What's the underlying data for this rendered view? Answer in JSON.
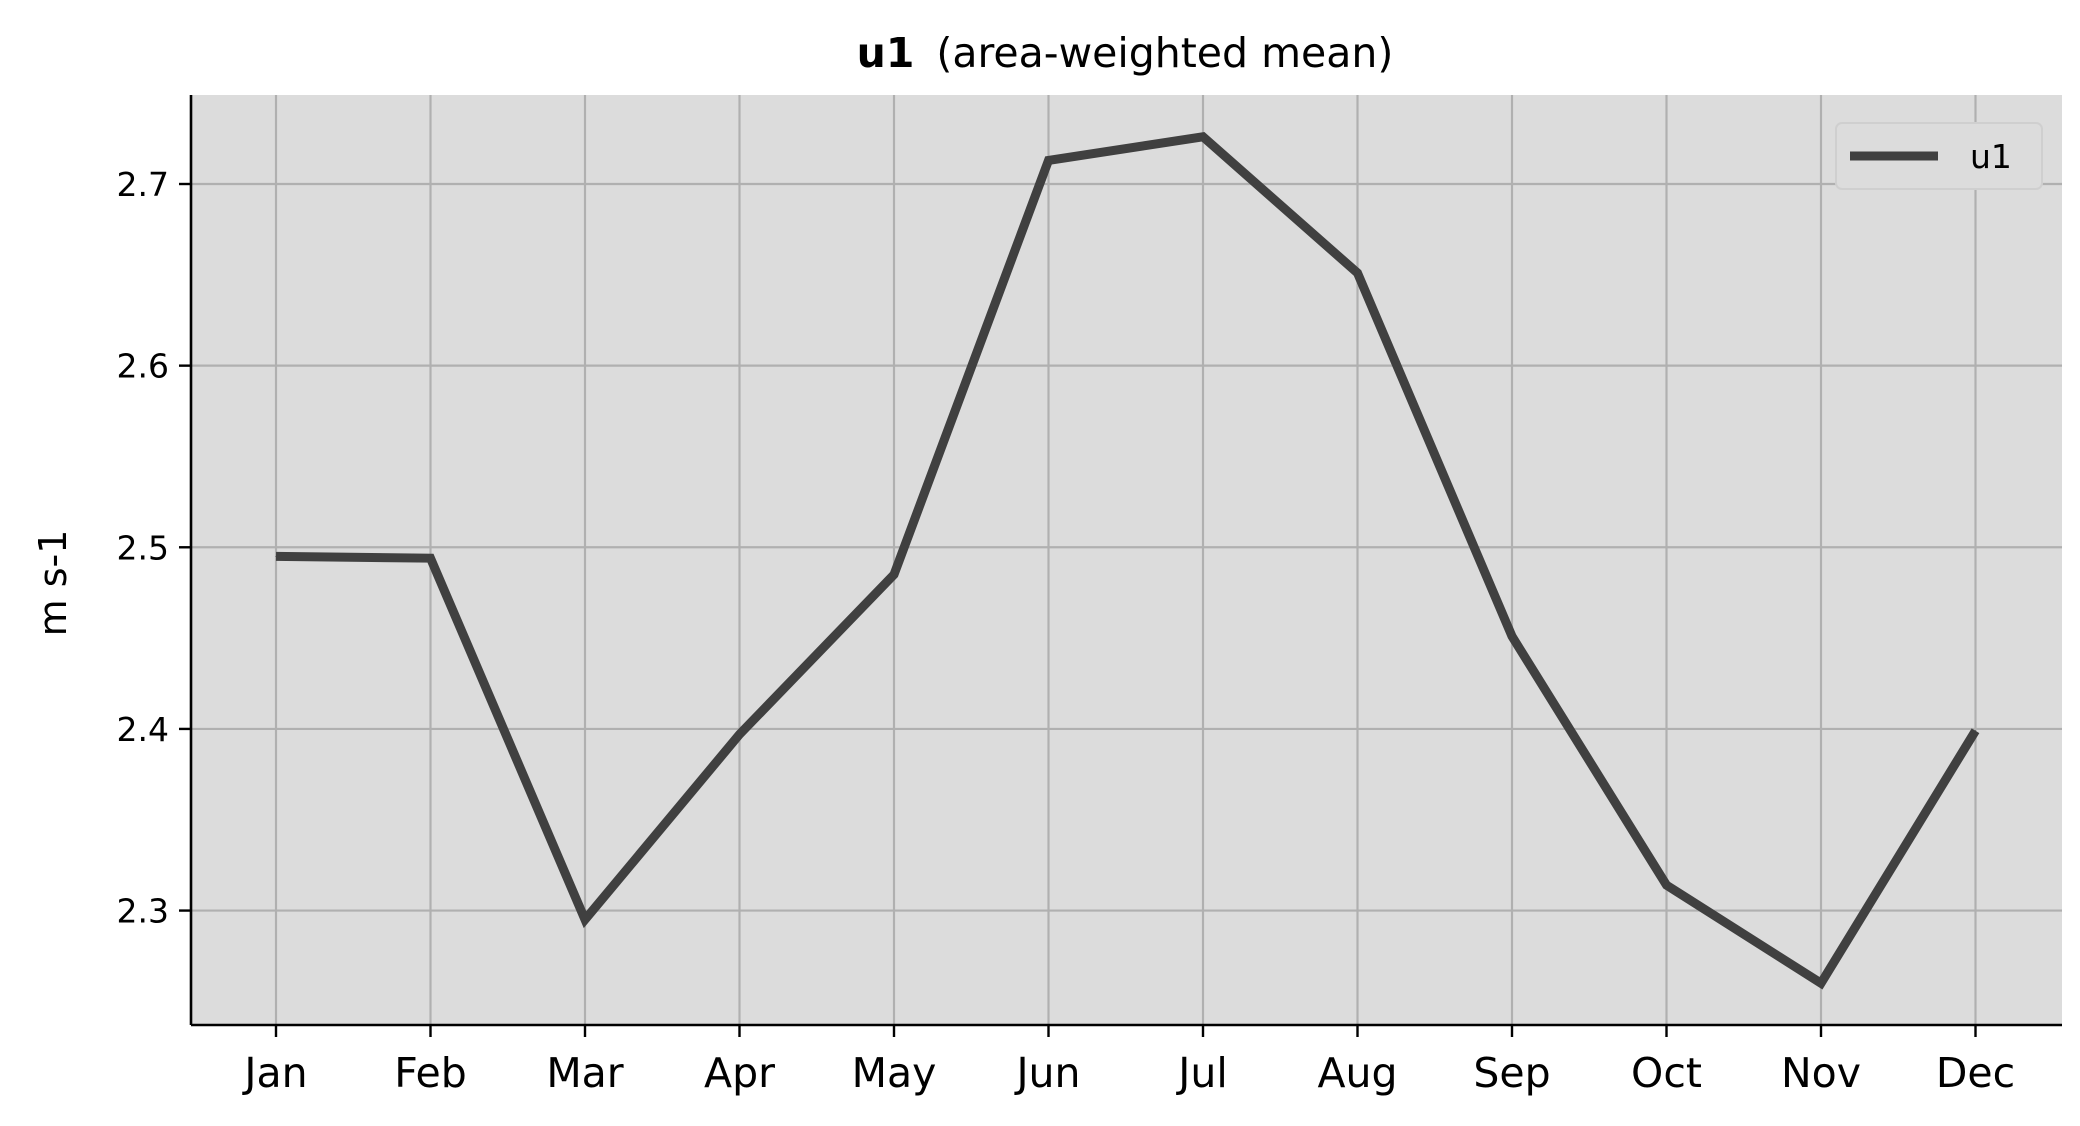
{
  "chart_data": {
    "type": "line",
    "title": "u1",
    "subtitle": "(area-weighted mean)",
    "ylabel": "m s-1",
    "xlabel": "",
    "categories": [
      "Jan",
      "Feb",
      "Mar",
      "Apr",
      "May",
      "Jun",
      "Jul",
      "Aug",
      "Sep",
      "Oct",
      "Nov",
      "Dec"
    ],
    "series": [
      {
        "name": "u1",
        "color": "#404040",
        "values": [
          2.495,
          2.494,
          2.295,
          2.397,
          2.485,
          2.713,
          2.726,
          2.651,
          2.451,
          2.314,
          2.26,
          2.399
        ]
      }
    ],
    "ylim": [
      2.237,
      2.749
    ],
    "yticks": [
      "2.3",
      "2.4",
      "2.5",
      "2.6",
      "2.7"
    ],
    "ytick_values": [
      2.3,
      2.4,
      2.5,
      2.6,
      2.7
    ],
    "grid": true,
    "legend_position": "top-right",
    "plot_background": "#dcdcdc",
    "grid_color": "#b0b0b0"
  }
}
